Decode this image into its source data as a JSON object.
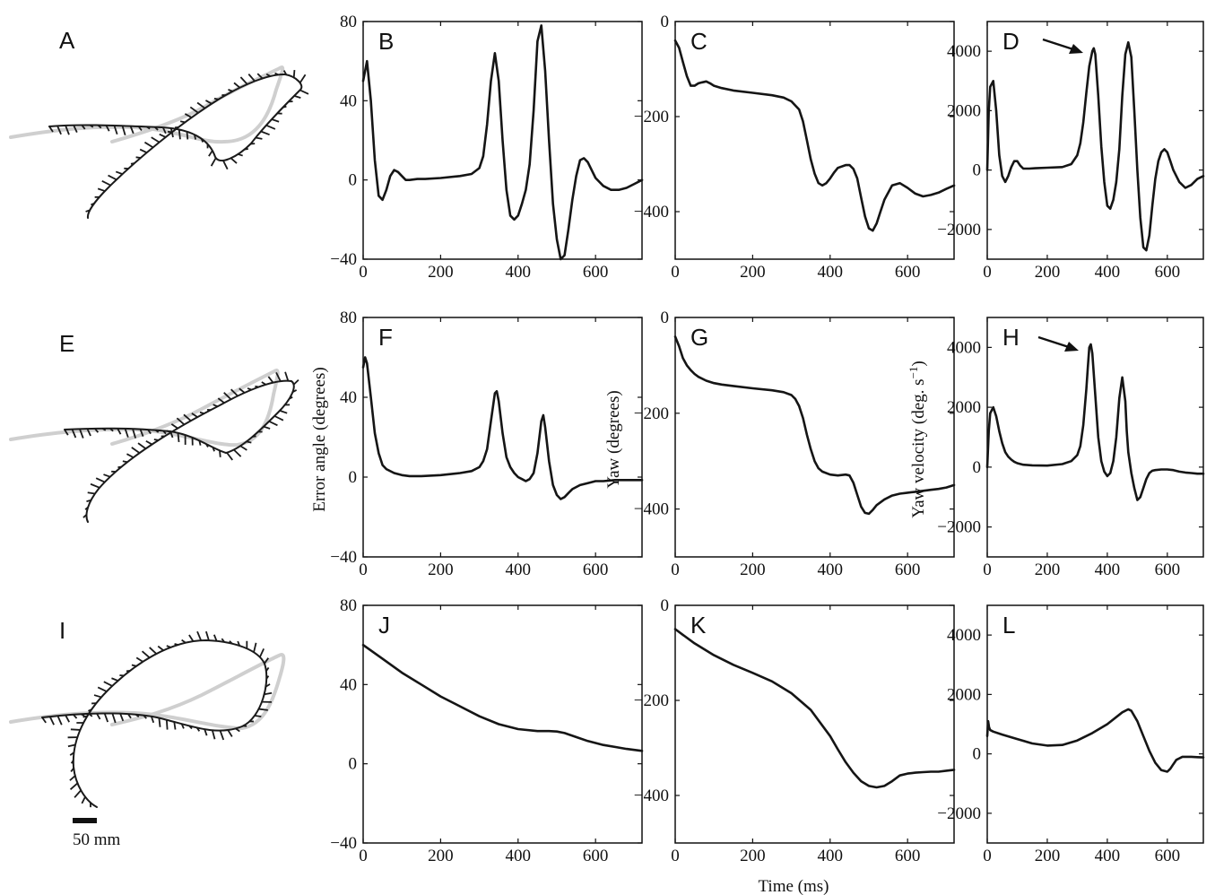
{
  "panel_labels": [
    "A",
    "B",
    "C",
    "D",
    "E",
    "F",
    "G",
    "H",
    "I",
    "J",
    "K",
    "L"
  ],
  "axis_labels": {
    "error_angle": "Error angle  (degrees)",
    "yaw": "Yaw (degrees)",
    "yaw_velocity": "Yaw velocity (deg. s",
    "yaw_velocity_sup": "−1",
    "yaw_velocity_close": ")",
    "time": "Time (ms)"
  },
  "scale_bar_label": "50 mm",
  "chart_data": [
    {
      "panel": "B",
      "type": "line",
      "xlim": [
        0,
        720
      ],
      "ylim": [
        -40,
        80
      ],
      "xticks": [
        0,
        200,
        400,
        600
      ],
      "yticks": [
        -40,
        0,
        40,
        80
      ],
      "x": [
        0,
        10,
        20,
        30,
        40,
        50,
        60,
        70,
        80,
        90,
        100,
        110,
        120,
        140,
        160,
        200,
        250,
        280,
        300,
        310,
        320,
        330,
        340,
        350,
        360,
        370,
        380,
        390,
        400,
        410,
        420,
        430,
        440,
        450,
        460,
        470,
        480,
        490,
        500,
        510,
        520,
        530,
        540,
        550,
        560,
        570,
        580,
        590,
        600,
        610,
        620,
        640,
        660,
        680,
        700,
        720
      ],
      "y": [
        50,
        60,
        40,
        10,
        -8,
        -10,
        -5,
        2,
        5,
        4,
        2,
        0,
        0,
        0.5,
        0.5,
        1,
        2,
        3,
        6,
        12,
        28,
        50,
        64,
        50,
        20,
        -5,
        -18,
        -20,
        -18,
        -12,
        -5,
        8,
        35,
        70,
        78,
        55,
        20,
        -12,
        -30,
        -40,
        -38,
        -25,
        -10,
        2,
        10,
        11,
        9,
        5,
        1,
        -1,
        -3,
        -5,
        -5,
        -4,
        -2,
        0
      ]
    },
    {
      "panel": "C",
      "type": "line",
      "xlim": [
        0,
        720
      ],
      "ylim": [
        -500,
        0
      ],
      "xticks": [
        0,
        200,
        400,
        600
      ],
      "yticks": [
        -400,
        -200,
        0
      ],
      "x": [
        0,
        10,
        20,
        30,
        40,
        50,
        60,
        70,
        80,
        90,
        100,
        120,
        150,
        200,
        250,
        280,
        300,
        320,
        330,
        340,
        350,
        360,
        370,
        380,
        390,
        400,
        410,
        420,
        440,
        450,
        460,
        470,
        480,
        490,
        500,
        510,
        520,
        530,
        540,
        560,
        580,
        600,
        620,
        640,
        660,
        680,
        700,
        720
      ],
      "y": [
        -40,
        -55,
        -85,
        -115,
        -135,
        -135,
        -130,
        -128,
        -126,
        -130,
        -135,
        -140,
        -145,
        -150,
        -155,
        -160,
        -168,
        -185,
        -210,
        -250,
        -290,
        -320,
        -340,
        -345,
        -340,
        -330,
        -318,
        -308,
        -302,
        -302,
        -310,
        -330,
        -370,
        -410,
        -435,
        -440,
        -425,
        -400,
        -375,
        -345,
        -340,
        -350,
        -362,
        -368,
        -365,
        -360,
        -352,
        -345
      ]
    },
    {
      "panel": "D",
      "type": "line",
      "xlim": [
        0,
        720
      ],
      "ylim": [
        -3000,
        5000
      ],
      "xticks": [
        0,
        200,
        400,
        600
      ],
      "yticks": [
        -2000,
        0,
        2000,
        4000
      ],
      "x": [
        0,
        5,
        10,
        20,
        30,
        40,
        50,
        60,
        70,
        80,
        90,
        100,
        110,
        120,
        140,
        160,
        200,
        250,
        280,
        300,
        310,
        320,
        330,
        340,
        350,
        355,
        360,
        370,
        380,
        390,
        400,
        410,
        420,
        430,
        440,
        450,
        460,
        470,
        480,
        490,
        500,
        510,
        520,
        530,
        540,
        550,
        560,
        570,
        580,
        590,
        600,
        610,
        620,
        640,
        660,
        680,
        700,
        720
      ],
      "y": [
        0,
        2000,
        2800,
        3000,
        2000,
        500,
        -200,
        -400,
        -200,
        100,
        300,
        300,
        150,
        50,
        50,
        60,
        80,
        100,
        200,
        500,
        900,
        1600,
        2600,
        3500,
        4000,
        4100,
        3900,
        2500,
        800,
        -400,
        -1200,
        -1300,
        -1000,
        -400,
        700,
        2500,
        3900,
        4300,
        3800,
        2000,
        0,
        -1600,
        -2600,
        -2700,
        -2200,
        -1200,
        -300,
        300,
        600,
        700,
        600,
        300,
        0,
        -400,
        -600,
        -500,
        -300,
        -200
      ]
    },
    {
      "panel": "F",
      "type": "line",
      "xlim": [
        0,
        720
      ],
      "ylim": [
        -40,
        80
      ],
      "xticks": [
        0,
        200,
        400,
        600
      ],
      "yticks": [
        -40,
        0,
        40,
        80
      ],
      "x": [
        0,
        5,
        10,
        20,
        30,
        40,
        50,
        60,
        80,
        100,
        120,
        150,
        200,
        250,
        280,
        300,
        310,
        320,
        330,
        340,
        345,
        350,
        360,
        370,
        380,
        390,
        400,
        410,
        420,
        430,
        440,
        450,
        460,
        465,
        470,
        480,
        490,
        500,
        510,
        520,
        530,
        540,
        560,
        580,
        600,
        620,
        650,
        680,
        700,
        720
      ],
      "y": [
        55,
        60,
        57,
        40,
        22,
        12,
        6,
        4,
        2,
        1,
        0.5,
        0.5,
        1,
        2,
        3,
        5,
        8,
        14,
        28,
        42,
        43,
        38,
        22,
        10,
        5,
        2,
        0,
        -1,
        -2,
        -1,
        2,
        12,
        28,
        31,
        25,
        8,
        -4,
        -9,
        -11,
        -10,
        -8,
        -6,
        -4,
        -3,
        -2,
        -2,
        -1.5,
        -1.5,
        -1.5,
        -1.5
      ]
    },
    {
      "panel": "G",
      "type": "line",
      "xlim": [
        0,
        720
      ],
      "ylim": [
        -500,
        0
      ],
      "xticks": [
        0,
        200,
        400,
        600
      ],
      "yticks": [
        -400,
        -200,
        0
      ],
      "x": [
        0,
        10,
        20,
        30,
        40,
        50,
        60,
        80,
        100,
        120,
        150,
        200,
        250,
        280,
        300,
        310,
        320,
        330,
        340,
        350,
        360,
        370,
        380,
        400,
        420,
        440,
        450,
        460,
        470,
        480,
        490,
        500,
        510,
        520,
        540,
        560,
        580,
        600,
        620,
        640,
        660,
        680,
        700,
        720
      ],
      "y": [
        -40,
        -60,
        -85,
        -100,
        -110,
        -118,
        -124,
        -132,
        -137,
        -140,
        -143,
        -148,
        -152,
        -156,
        -162,
        -170,
        -185,
        -210,
        -245,
        -275,
        -300,
        -315,
        -322,
        -328,
        -330,
        -328,
        -330,
        -345,
        -370,
        -395,
        -408,
        -410,
        -402,
        -392,
        -380,
        -372,
        -368,
        -366,
        -364,
        -362,
        -360,
        -358,
        -355,
        -350
      ]
    },
    {
      "panel": "H",
      "type": "line",
      "xlim": [
        0,
        720
      ],
      "ylim": [
        -3000,
        5000
      ],
      "xticks": [
        0,
        200,
        400,
        600
      ],
      "yticks": [
        -2000,
        0,
        2000,
        4000
      ],
      "x": [
        0,
        5,
        10,
        20,
        30,
        40,
        50,
        60,
        70,
        80,
        90,
        100,
        120,
        150,
        200,
        250,
        280,
        300,
        310,
        320,
        330,
        335,
        340,
        345,
        350,
        360,
        370,
        380,
        390,
        400,
        410,
        420,
        430,
        440,
        450,
        460,
        465,
        470,
        480,
        490,
        500,
        510,
        520,
        530,
        540,
        550,
        560,
        580,
        600,
        620,
        640,
        660,
        680,
        700,
        720
      ],
      "y": [
        0,
        1200,
        1800,
        2000,
        1700,
        1200,
        800,
        500,
        350,
        250,
        180,
        130,
        80,
        60,
        50,
        100,
        200,
        400,
        700,
        1400,
        2600,
        3300,
        4000,
        4100,
        3800,
        2400,
        1000,
        200,
        -150,
        -300,
        -200,
        200,
        1000,
        2300,
        3000,
        2200,
        1200,
        500,
        -200,
        -700,
        -1100,
        -1000,
        -700,
        -400,
        -200,
        -120,
        -100,
        -80,
        -80,
        -100,
        -150,
        -180,
        -200,
        -220,
        -220
      ]
    },
    {
      "panel": "J",
      "type": "line",
      "xlim": [
        0,
        720
      ],
      "ylim": [
        -40,
        80
      ],
      "xticks": [
        0,
        200,
        400,
        600
      ],
      "yticks": [
        -40,
        0,
        40,
        80
      ],
      "x": [
        0,
        50,
        100,
        150,
        200,
        250,
        300,
        350,
        400,
        450,
        480,
        500,
        520,
        550,
        580,
        600,
        620,
        650,
        680,
        700,
        720
      ],
      "y": [
        60,
        53,
        46,
        40,
        34,
        29,
        24,
        20,
        17.5,
        16.5,
        16.5,
        16.3,
        15.5,
        13.5,
        11.5,
        10.5,
        9.5,
        8.5,
        7.5,
        7,
        6.5
      ]
    },
    {
      "panel": "K",
      "type": "line",
      "xlim": [
        0,
        720
      ],
      "ylim": [
        -500,
        0
      ],
      "xticks": [
        0,
        200,
        400,
        600
      ],
      "yticks": [
        -400,
        -200,
        0
      ],
      "x": [
        0,
        20,
        50,
        100,
        150,
        200,
        250,
        300,
        350,
        400,
        420,
        440,
        460,
        480,
        500,
        520,
        540,
        560,
        580,
        600,
        620,
        640,
        660,
        680,
        700,
        720
      ],
      "y": [
        -50,
        -62,
        -80,
        -105,
        -125,
        -142,
        -160,
        -185,
        -220,
        -275,
        -303,
        -330,
        -352,
        -370,
        -380,
        -383,
        -380,
        -370,
        -358,
        -354,
        -352,
        -351,
        -350,
        -350,
        -348,
        -346
      ]
    },
    {
      "panel": "L",
      "type": "line",
      "xlim": [
        0,
        720
      ],
      "ylim": [
        -3000,
        5000
      ],
      "xticks": [
        0,
        200,
        400,
        600
      ],
      "yticks": [
        -2000,
        0,
        2000,
        4000
      ],
      "x": [
        0,
        3,
        6,
        10,
        20,
        50,
        100,
        150,
        200,
        250,
        300,
        350,
        400,
        450,
        470,
        480,
        500,
        520,
        540,
        560,
        580,
        600,
        610,
        620,
        630,
        640,
        650,
        660,
        680,
        700,
        720
      ],
      "y": [
        600,
        1100,
        900,
        800,
        750,
        650,
        500,
        350,
        280,
        300,
        450,
        700,
        1000,
        1400,
        1500,
        1450,
        1100,
        600,
        100,
        -300,
        -550,
        -600,
        -500,
        -350,
        -200,
        -150,
        -100,
        -100,
        -100,
        -110,
        -120
      ]
    }
  ]
}
